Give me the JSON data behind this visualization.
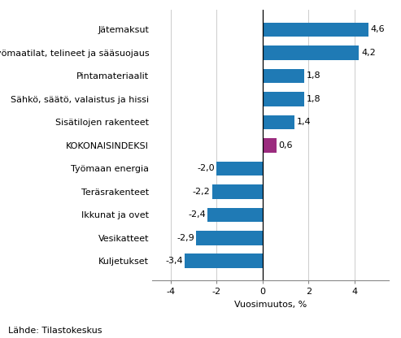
{
  "categories": [
    "Kuljetukset",
    "Vesikatteet",
    "Ikkunat ja ovet",
    "Teräsrakenteet",
    "Työmaan energia",
    "KOKONAISINDEKSI",
    "Sisätilojen rakenteet",
    "Sähkö, säätö, valaistus ja hissi",
    "Pintamateriaalit",
    "Työmaatilat, telineet ja sääsuojaus",
    "Jätemaksut"
  ],
  "values": [
    -3.4,
    -2.9,
    -2.4,
    -2.2,
    -2.0,
    0.6,
    1.4,
    1.8,
    1.8,
    4.2,
    4.6
  ],
  "bar_colors": [
    "#1f7ab5",
    "#1f7ab5",
    "#1f7ab5",
    "#1f7ab5",
    "#1f7ab5",
    "#9b2c7e",
    "#1f7ab5",
    "#1f7ab5",
    "#1f7ab5",
    "#1f7ab5",
    "#1f7ab5"
  ],
  "xlim": [
    -4.8,
    5.5
  ],
  "xticks": [
    -4,
    -2,
    0,
    2,
    4
  ],
  "xlabel": "Vuosimuutos, %",
  "footnote": "Lähde: Tilastokeskus",
  "value_labels": [
    "-3,4",
    "-2,9",
    "-2,4",
    "-2,2",
    "-2,0",
    "0,6",
    "1,4",
    "1,8",
    "1,8",
    "4,2",
    "4,6"
  ],
  "background_color": "#ffffff",
  "bar_height": 0.62,
  "label_fontsize": 8,
  "tick_fontsize": 8,
  "footnote_fontsize": 8,
  "grid_color": "#cccccc",
  "spine_color": "#888888"
}
